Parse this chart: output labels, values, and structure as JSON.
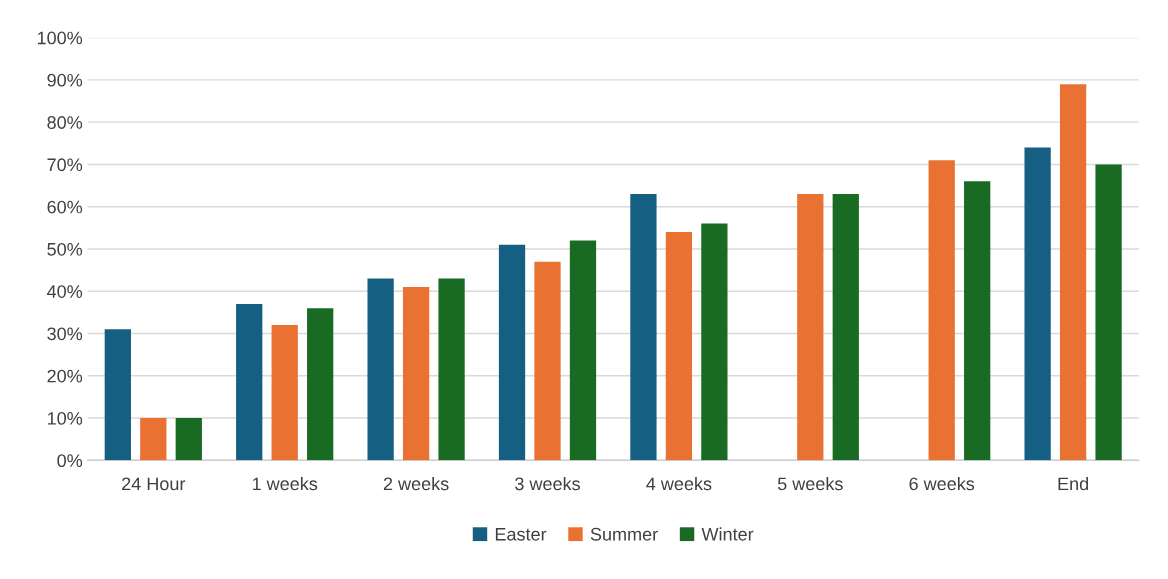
{
  "chart_data": {
    "type": "bar",
    "categories": [
      "24 Hour",
      "1 weeks",
      "2 weeks",
      "3 weeks",
      "4 weeks",
      "5 weeks",
      "6 weeks",
      "End"
    ],
    "series": [
      {
        "name": "Easter",
        "color": "#156082",
        "values": [
          31,
          37,
          43,
          51,
          63,
          null,
          null,
          74
        ]
      },
      {
        "name": "Summer",
        "color": "#e97132",
        "values": [
          10,
          32,
          41,
          47,
          54,
          63,
          71,
          89
        ]
      },
      {
        "name": "Winter",
        "color": "#196b24",
        "values": [
          10,
          36,
          43,
          52,
          56,
          63,
          66,
          70
        ]
      }
    ],
    "ylim": [
      0,
      100
    ],
    "yticks": [
      {
        "value": 0,
        "label": "0%"
      },
      {
        "value": 10,
        "label": "10%"
      },
      {
        "value": 20,
        "label": "20%"
      },
      {
        "value": 30,
        "label": "30%"
      },
      {
        "value": 40,
        "label": "40%"
      },
      {
        "value": 50,
        "label": "50%"
      },
      {
        "value": 60,
        "label": "60%"
      },
      {
        "value": 70,
        "label": "70%"
      },
      {
        "value": 80,
        "label": "80%"
      },
      {
        "value": 90,
        "label": "90%"
      },
      {
        "value": 100,
        "label": "100%"
      }
    ],
    "grid": "y",
    "legend": "bottom"
  }
}
